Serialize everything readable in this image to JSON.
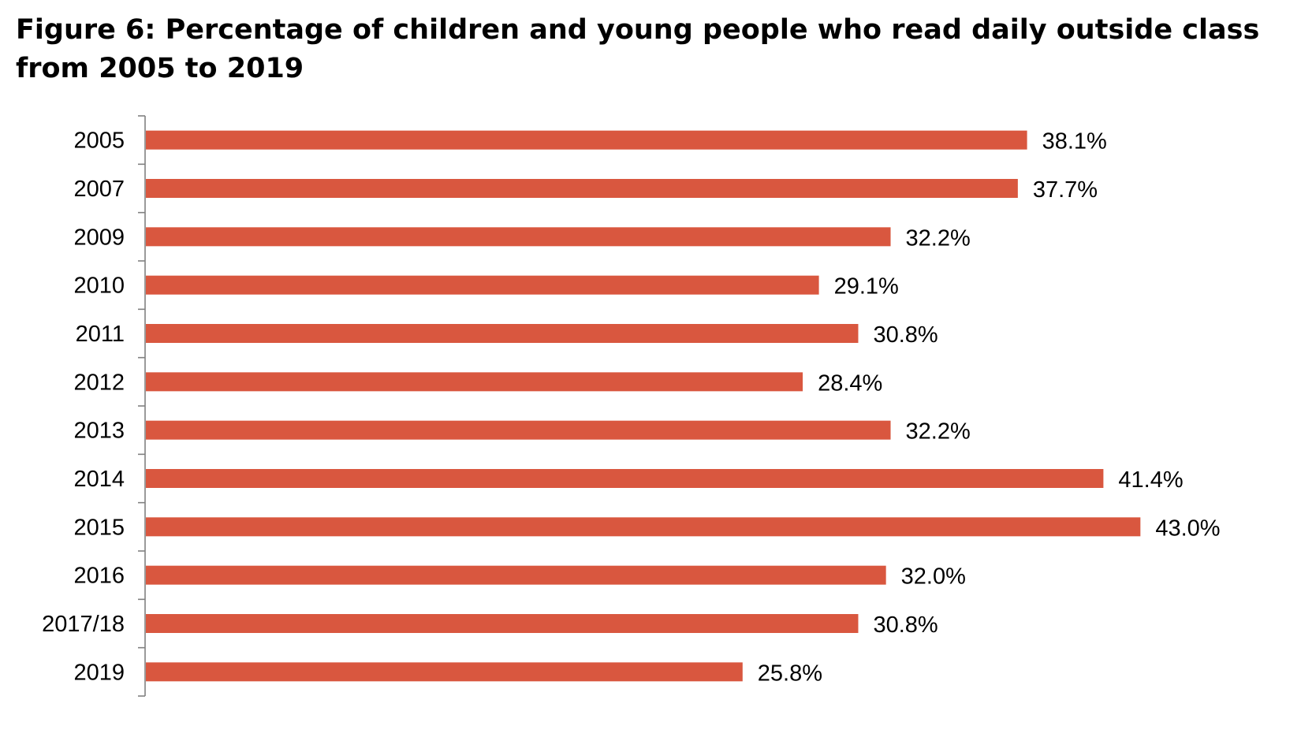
{
  "chart_data": {
    "type": "bar",
    "orientation": "horizontal",
    "title": "Figure 6: Percentage of children and young people who read daily outside class from 2005 to 2019",
    "categories": [
      "2005",
      "2007",
      "2009",
      "2010",
      "2011",
      "2012",
      "2013",
      "2014",
      "2015",
      "2016",
      "2017/18",
      "2019"
    ],
    "values": [
      38.1,
      37.7,
      32.2,
      29.1,
      30.8,
      28.4,
      32.2,
      41.4,
      43.0,
      32.0,
      30.8,
      25.8
    ],
    "value_labels": [
      "38.1%",
      "37.7%",
      "32.2%",
      "29.1%",
      "30.8%",
      "28.4%",
      "32.2%",
      "41.4%",
      "43.0%",
      "32.0%",
      "30.8%",
      "25.8%"
    ],
    "xlim": [
      0,
      45
    ],
    "xlabel": "",
    "ylabel": "",
    "grid": false,
    "legend": "none",
    "bar_color": "#D9573F"
  }
}
